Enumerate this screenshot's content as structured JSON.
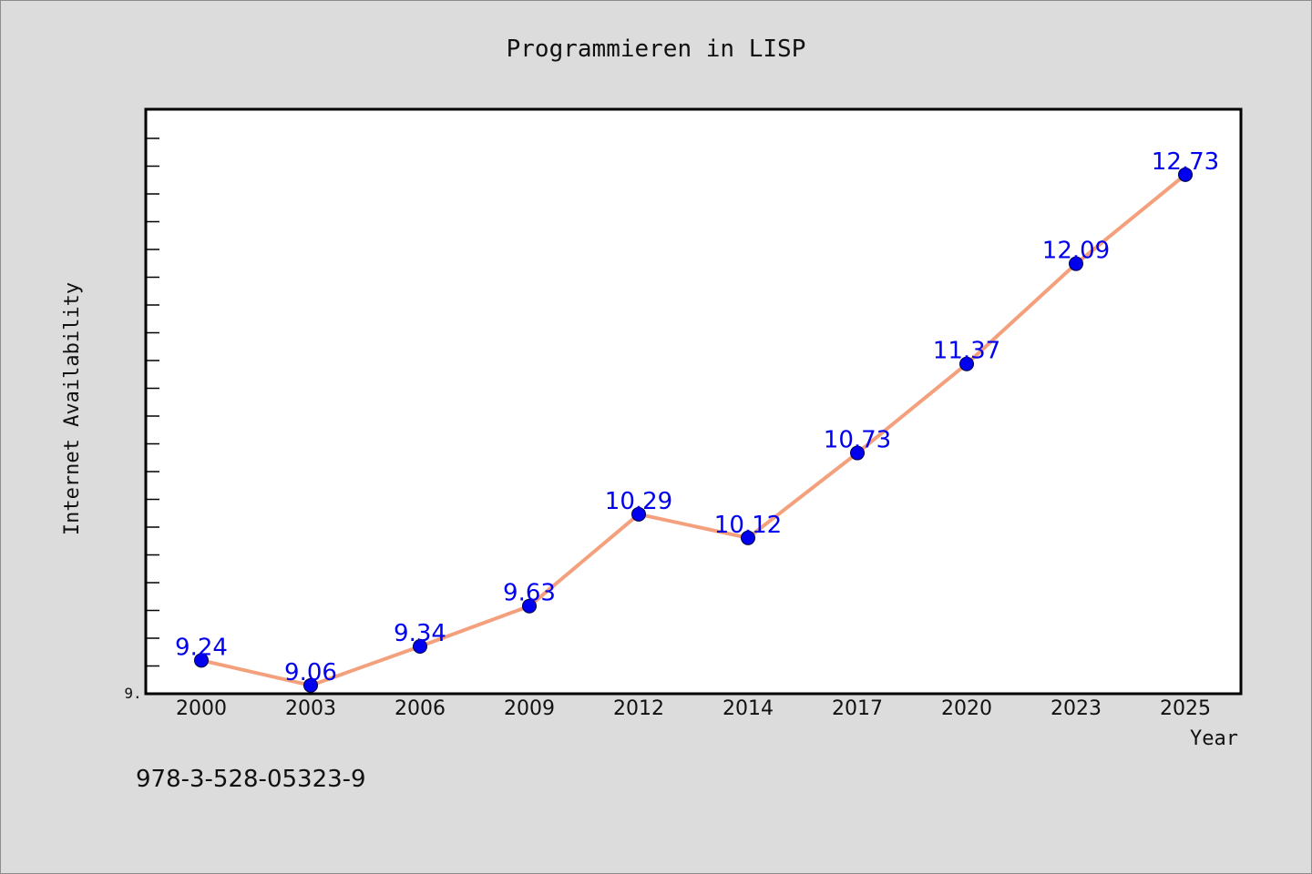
{
  "chart_data": {
    "type": "line",
    "title": "Programmieren in LISP",
    "xlabel": "Year",
    "ylabel": "Internet Availability",
    "y_tick_label": "9.",
    "categories": [
      "2000",
      "2003",
      "2006",
      "2009",
      "2012",
      "2014",
      "2017",
      "2020",
      "2023",
      "2025"
    ],
    "series": [
      {
        "values": [
          9.24,
          9.06,
          9.34,
          9.63,
          10.29,
          10.12,
          10.73,
          11.37,
          12.09,
          12.73
        ],
        "labels": [
          "9.24",
          "9.06",
          "9.34",
          "9.63",
          "10.29",
          "10.12",
          "10.73",
          "11.37",
          "12.09",
          "12.73"
        ]
      }
    ],
    "ylim": [
      9.0,
      13.2
    ],
    "grid": false,
    "legend": "none",
    "colors": {
      "line": "#f4a07c",
      "marker": "#0000ee",
      "label": "#0000ee",
      "plot_bg": "#ffffff",
      "page_bg": "#dcdcdc"
    }
  },
  "footer": {
    "isbn": "978-3-528-05323-9"
  }
}
